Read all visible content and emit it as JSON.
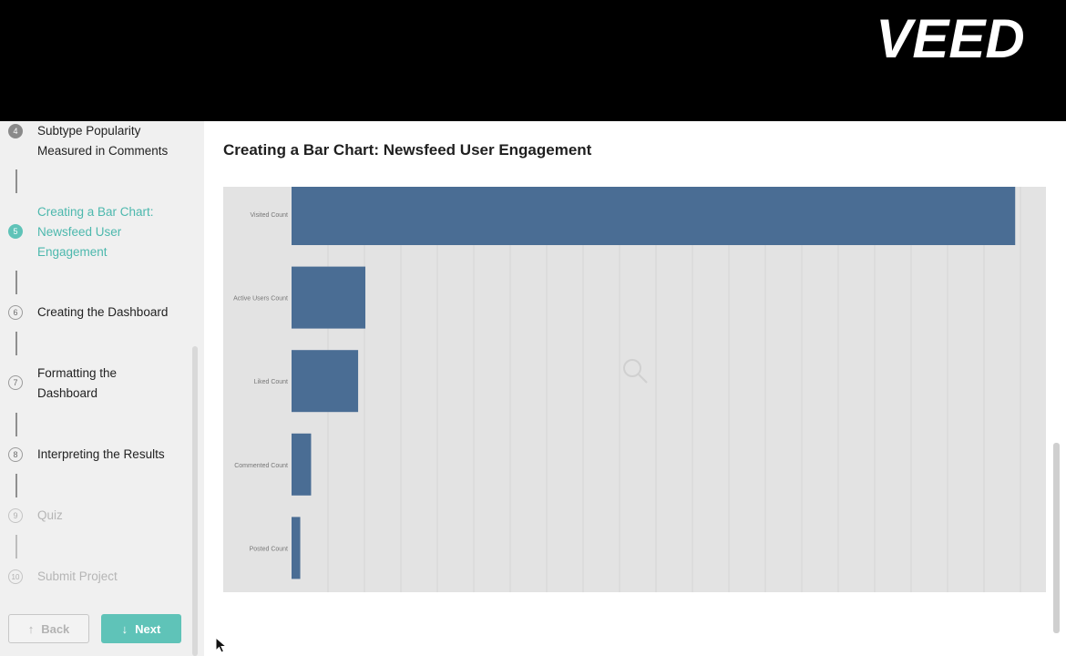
{
  "header": {
    "logo_text": "VEED"
  },
  "sidebar": {
    "steps": [
      {
        "number": "4",
        "label": "Subtype Popularity Measured in Comments",
        "state": "done"
      },
      {
        "number": "5",
        "label": "Creating a Bar Chart: Newsfeed User Engagement",
        "state": "active"
      },
      {
        "number": "6",
        "label": "Creating the Dashboard",
        "state": "todo"
      },
      {
        "number": "7",
        "label": "Formatting the Dashboard",
        "state": "todo"
      },
      {
        "number": "8",
        "label": "Interpreting the Results",
        "state": "todo"
      },
      {
        "number": "9",
        "label": "Quiz",
        "state": "locked"
      },
      {
        "number": "10",
        "label": "Submit Project",
        "state": "locked"
      }
    ],
    "back_label": "Back",
    "next_label": "Next",
    "back_icon": "arrow-up-icon",
    "next_icon": "arrow-down-icon"
  },
  "main": {
    "title": "Creating a Bar Chart: Newsfeed User Engagement"
  },
  "colors": {
    "accent": "#5fc3b8",
    "bar": "#4a6d94",
    "chart_bg": "#e3e3e3"
  },
  "chart_data": {
    "type": "bar",
    "orientation": "horizontal",
    "categories": [
      "Visited Count",
      "Active Users Count",
      "Liked Count",
      "Commented Count",
      "Posted Count"
    ],
    "values": [
      100,
      10.2,
      9.2,
      2.7,
      1.2
    ],
    "xlim": [
      0,
      104
    ],
    "grid": true,
    "title": "",
    "xlabel": "",
    "ylabel": ""
  }
}
